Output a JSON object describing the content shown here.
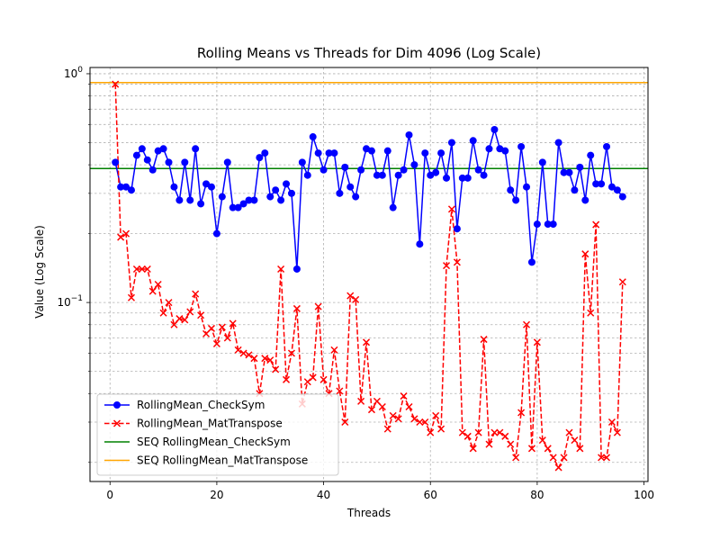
{
  "chart_data": {
    "type": "line",
    "title": "Rolling Means vs Threads for Dim 4096 (Log Scale)",
    "xlabel": "Threads",
    "ylabel": "Value (Log Scale)",
    "x_ticks": [
      0,
      20,
      40,
      60,
      80,
      100
    ],
    "y_ticks": [
      {
        "value": 0.1,
        "label": "10",
        "exp": "−1"
      },
      {
        "value": 1,
        "label": "10",
        "exp": "0"
      }
    ],
    "xlim": [
      -3.75,
      100.75
    ],
    "ylim": [
      0.0165,
      1.065
    ],
    "y_scale": "log",
    "grid": true,
    "legend_position": "lower-left",
    "series": [
      {
        "name": "RollingMean_CheckSym",
        "color": "#0000ff",
        "line_style": "solid",
        "marker": "circle",
        "x": [
          1,
          2,
          3,
          4,
          5,
          6,
          7,
          8,
          9,
          10,
          11,
          12,
          13,
          14,
          15,
          16,
          17,
          18,
          19,
          20,
          21,
          22,
          23,
          24,
          25,
          26,
          27,
          28,
          29,
          30,
          31,
          32,
          33,
          34,
          35,
          36,
          37,
          38,
          39,
          40,
          41,
          42,
          43,
          44,
          45,
          46,
          47,
          48,
          49,
          50,
          51,
          52,
          53,
          54,
          55,
          56,
          57,
          58,
          59,
          60,
          61,
          62,
          63,
          64,
          65,
          66,
          67,
          68,
          69,
          70,
          71,
          72,
          73,
          74,
          75,
          76,
          77,
          78,
          79,
          80,
          81,
          82,
          83,
          84,
          85,
          86,
          87,
          88,
          89,
          90,
          91,
          92,
          93,
          94,
          95,
          96
        ],
        "values": [
          0.41,
          0.32,
          0.32,
          0.31,
          0.44,
          0.47,
          0.42,
          0.38,
          0.46,
          0.47,
          0.41,
          0.32,
          0.28,
          0.41,
          0.28,
          0.47,
          0.27,
          0.33,
          0.32,
          0.2,
          0.29,
          0.41,
          0.26,
          0.26,
          0.27,
          0.28,
          0.28,
          0.43,
          0.45,
          0.29,
          0.31,
          0.28,
          0.33,
          0.3,
          0.14,
          0.41,
          0.36,
          0.53,
          0.45,
          0.38,
          0.45,
          0.45,
          0.3,
          0.39,
          0.32,
          0.29,
          0.38,
          0.47,
          0.46,
          0.36,
          0.36,
          0.46,
          0.26,
          0.36,
          0.38,
          0.54,
          0.4,
          0.18,
          0.45,
          0.36,
          0.37,
          0.45,
          0.35,
          0.5,
          0.21,
          0.35,
          0.35,
          0.51,
          0.38,
          0.36,
          0.47,
          0.57,
          0.47,
          0.46,
          0.31,
          0.28,
          0.48,
          0.32,
          0.15,
          0.22,
          0.41,
          0.22,
          0.22,
          0.5,
          0.37,
          0.37,
          0.31,
          0.39,
          0.28,
          0.44,
          0.33,
          0.33,
          0.48,
          0.32,
          0.31,
          0.29
        ]
      },
      {
        "name": "RollingMean_MatTranspose",
        "color": "#ff0000",
        "line_style": "dashed",
        "marker": "x",
        "x": [
          1,
          2,
          3,
          4,
          5,
          6,
          7,
          8,
          9,
          10,
          11,
          12,
          13,
          14,
          15,
          16,
          17,
          18,
          19,
          20,
          21,
          22,
          23,
          24,
          25,
          26,
          27,
          28,
          29,
          30,
          31,
          32,
          33,
          34,
          35,
          36,
          37,
          38,
          39,
          40,
          41,
          42,
          43,
          44,
          45,
          46,
          47,
          48,
          49,
          50,
          51,
          52,
          53,
          54,
          55,
          56,
          57,
          58,
          59,
          60,
          61,
          62,
          63,
          64,
          65,
          66,
          67,
          68,
          69,
          70,
          71,
          72,
          73,
          74,
          75,
          76,
          77,
          78,
          79,
          80,
          81,
          82,
          83,
          84,
          85,
          86,
          87,
          88,
          89,
          90,
          91,
          92,
          93,
          94,
          95,
          96
        ],
        "values": [
          0.9,
          0.193,
          0.2,
          0.105,
          0.14,
          0.14,
          0.14,
          0.112,
          0.12,
          0.09,
          0.1,
          0.08,
          0.085,
          0.084,
          0.091,
          0.109,
          0.088,
          0.073,
          0.077,
          0.066,
          0.078,
          0.07,
          0.081,
          0.062,
          0.06,
          0.059,
          0.057,
          0.04,
          0.057,
          0.056,
          0.051,
          0.14,
          0.046,
          0.06,
          0.094,
          0.036,
          0.045,
          0.047,
          0.096,
          0.046,
          0.04,
          0.062,
          0.041,
          0.03,
          0.107,
          0.103,
          0.037,
          0.067,
          0.034,
          0.037,
          0.035,
          0.028,
          0.032,
          0.031,
          0.039,
          0.035,
          0.031,
          0.03,
          0.03,
          0.027,
          0.032,
          0.028,
          0.145,
          0.256,
          0.15,
          0.027,
          0.026,
          0.023,
          0.027,
          0.069,
          0.024,
          0.027,
          0.027,
          0.026,
          0.024,
          0.021,
          0.033,
          0.08,
          0.023,
          0.067,
          0.025,
          0.023,
          0.021,
          0.019,
          0.021,
          0.027,
          0.025,
          0.023,
          0.163,
          0.09,
          0.219,
          0.021,
          0.021,
          0.03,
          0.027,
          0.123
        ]
      },
      {
        "name": "SEQ RollingMean_CheckSym",
        "color": "#008000",
        "line_style": "solid",
        "marker": "none",
        "horizontal": true,
        "value": 0.385
      },
      {
        "name": "SEQ RollingMean_MatTranspose",
        "color": "#ffa500",
        "line_style": "solid",
        "marker": "none",
        "horizontal": true,
        "value": 0.915
      }
    ]
  }
}
